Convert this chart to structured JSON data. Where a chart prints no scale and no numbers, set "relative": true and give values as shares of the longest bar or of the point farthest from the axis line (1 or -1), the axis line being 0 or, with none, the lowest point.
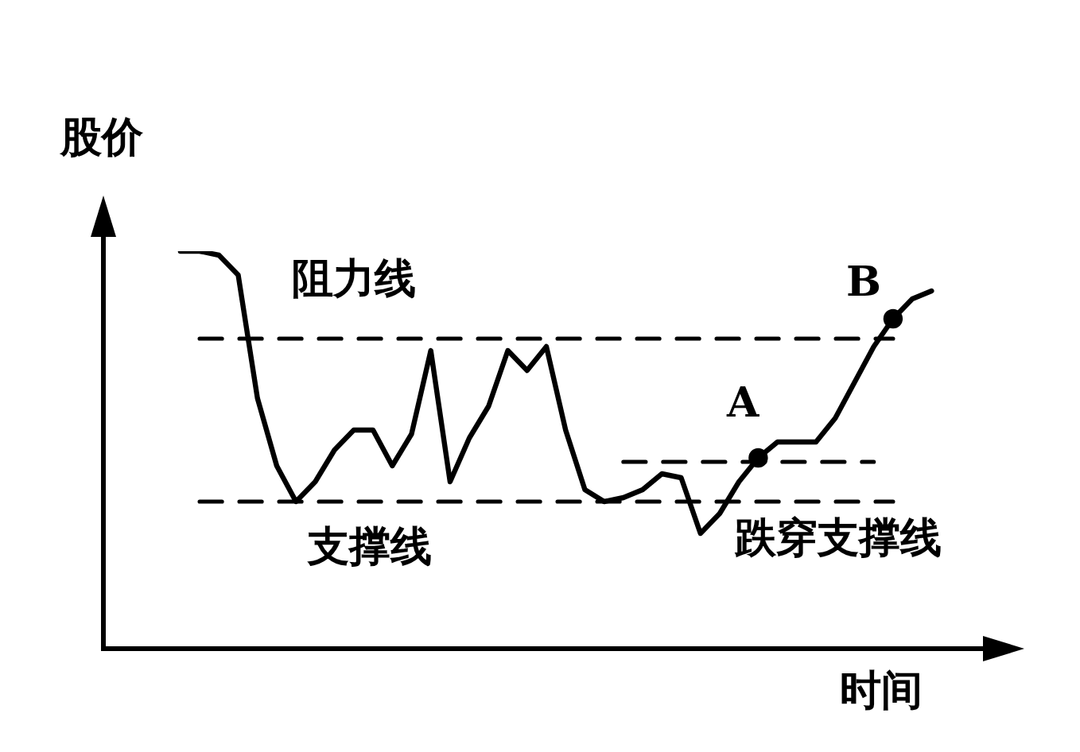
{
  "chart_data": {
    "type": "line",
    "relative": true,
    "tick_labels": false,
    "xlabel": "时间",
    "ylabel": "股价",
    "legend": false,
    "marker": "none",
    "categories": [
      null,
      null,
      null,
      null,
      null,
      null,
      null,
      null,
      null,
      null,
      null,
      null,
      null,
      null,
      null,
      null,
      null,
      null,
      null,
      null,
      null,
      null,
      null,
      null,
      null,
      null,
      null,
      null,
      null,
      null,
      null,
      null,
      null,
      null,
      null,
      null,
      null,
      null,
      null,
      null,
      null,
      null,
      null,
      null,
      null,
      null,
      null
    ],
    "series": [
      {
        "color": "#000000",
        "values": [
          null,
          null,
          null,
          null,
          1.0,
          1.0,
          0.99,
          0.94,
          0.63,
          0.46,
          0.37,
          0.42,
          0.5,
          0.55,
          0.55,
          0.46,
          0.54,
          0.75,
          0.42,
          0.53,
          0.61,
          0.75,
          0.7,
          0.76,
          0.55,
          0.4,
          0.37,
          0.38,
          0.4,
          0.44,
          0.43,
          0.29,
          0.34,
          0.42,
          0.48,
          0.52,
          0.52,
          0.52,
          0.58,
          0.67,
          0.76,
          0.83,
          0.88,
          0.9,
          null,
          null,
          null
        ]
      },
      {
        "name": "阻力线",
        "color": "#000000",
        "line_style": "dashed",
        "values": [
          null,
          null,
          null,
          null,
          null,
          0.78,
          0.78,
          0.78,
          0.78,
          0.78,
          0.78,
          0.78,
          0.78,
          0.78,
          0.78,
          0.78,
          0.78,
          0.78,
          0.78,
          0.78,
          0.78,
          0.78,
          0.78,
          0.78,
          0.78,
          0.78,
          0.78,
          0.78,
          0.78,
          0.78,
          0.78,
          0.78,
          0.78,
          0.78,
          0.78,
          0.78,
          0.78,
          0.78,
          0.78,
          0.78,
          0.78,
          0.78,
          null,
          null,
          null,
          null,
          null
        ]
      },
      {
        "name": "支撑线",
        "color": "#000000",
        "line_style": "dashed",
        "values": [
          null,
          null,
          null,
          null,
          null,
          0.37,
          0.37,
          0.37,
          0.37,
          0.37,
          0.37,
          0.37,
          0.37,
          0.37,
          0.37,
          0.37,
          0.37,
          0.37,
          0.37,
          0.37,
          0.37,
          0.37,
          0.37,
          0.37,
          0.37,
          0.37,
          0.37,
          0.37,
          0.37,
          0.37,
          0.37,
          0.37,
          0.37,
          0.37,
          0.37,
          0.37,
          0.37,
          0.37,
          0.37,
          0.37,
          0.37,
          0.37,
          null,
          null,
          null,
          null,
          null
        ]
      },
      {
        "color": "#000000",
        "line_style": "dashed",
        "values": [
          null,
          null,
          null,
          null,
          null,
          null,
          null,
          null,
          null,
          null,
          null,
          null,
          null,
          null,
          null,
          null,
          null,
          null,
          null,
          null,
          null,
          null,
          null,
          null,
          null,
          null,
          null,
          0.47,
          0.47,
          0.47,
          0.47,
          0.47,
          0.47,
          0.47,
          0.47,
          0.47,
          0.47,
          0.47,
          0.47,
          0.47,
          0.47,
          null,
          null,
          null,
          null,
          null,
          null
        ]
      },
      {
        "marker": "circle",
        "color": "#000000",
        "values": [
          null,
          null,
          null,
          null,
          null,
          null,
          null,
          null,
          null,
          null,
          null,
          null,
          null,
          null,
          null,
          null,
          null,
          null,
          null,
          null,
          null,
          null,
          null,
          null,
          null,
          null,
          null,
          null,
          null,
          null,
          null,
          null,
          null,
          null,
          0.48,
          null,
          null,
          null,
          null,
          null,
          null,
          0.83,
          null,
          null,
          null,
          null,
          null
        ]
      }
    ],
    "annotations": [
      "跌穿支撑线",
      "A",
      "B"
    ]
  }
}
